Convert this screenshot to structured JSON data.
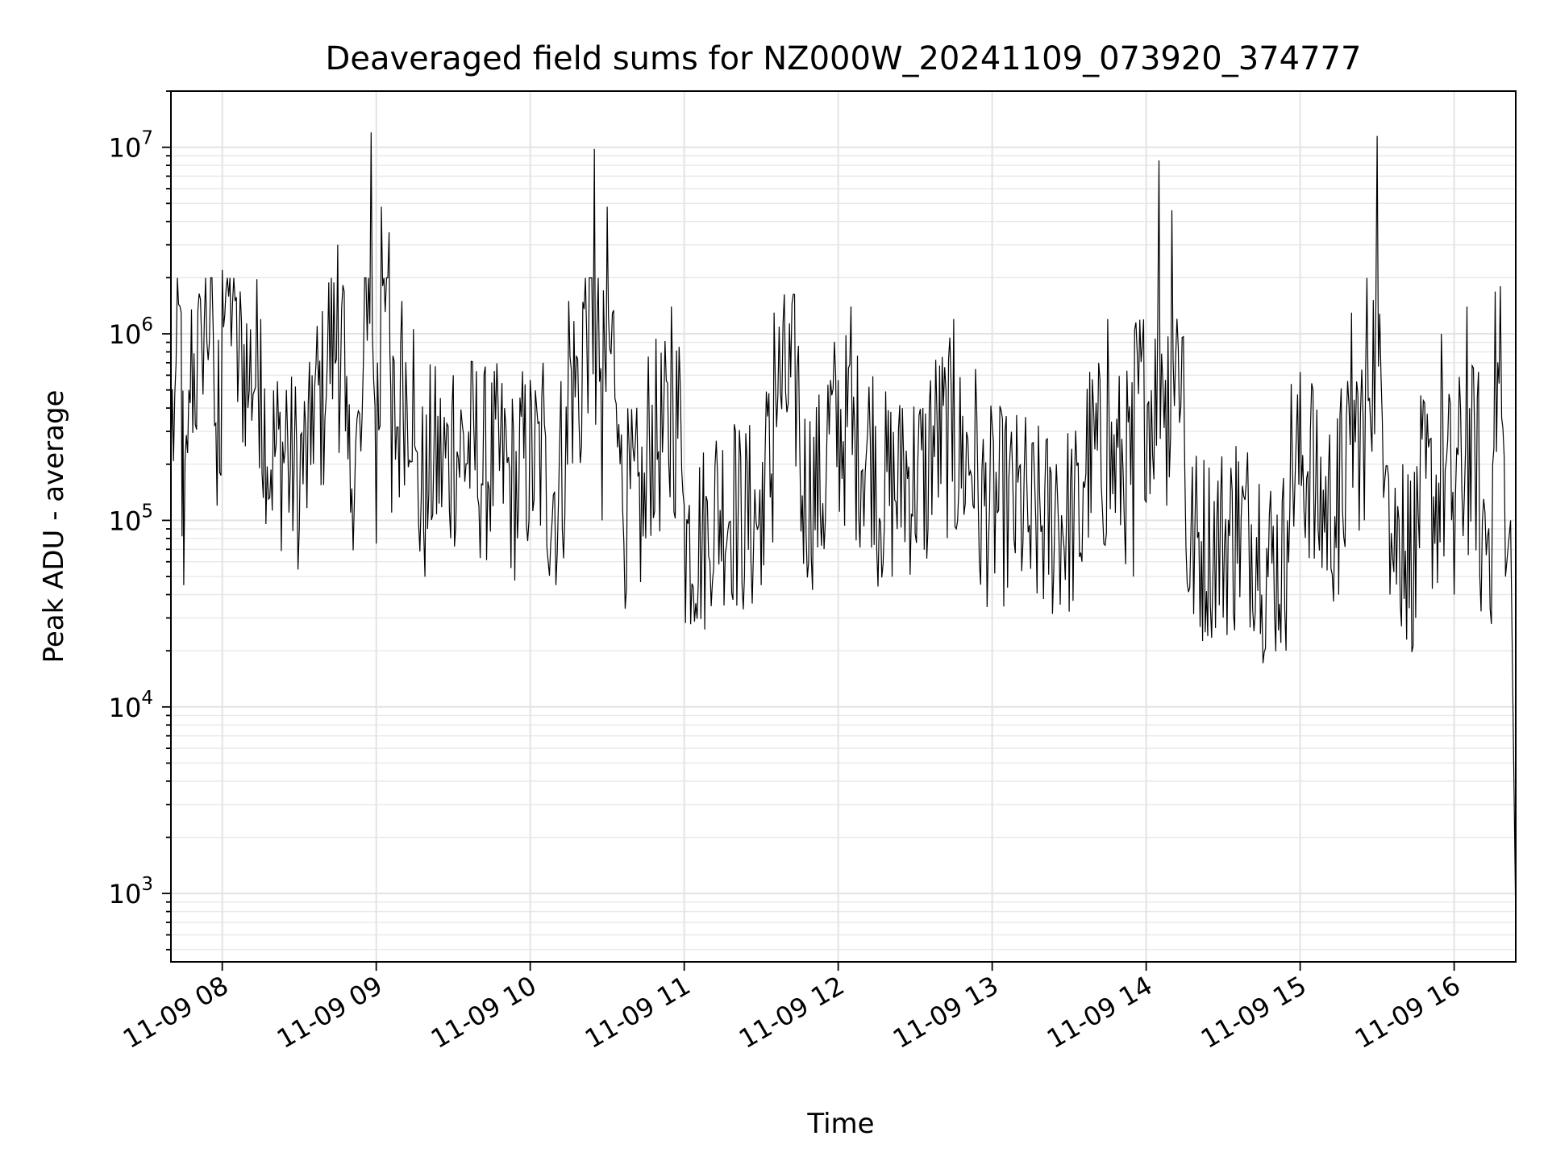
{
  "chart_data": {
    "type": "line",
    "title": "Deaveraged field sums for NZ000W_20241109_073920_374777",
    "xlabel": "Time",
    "ylabel": "Peak ADU - average",
    "yscale": "log",
    "grid": "both (major and minor)",
    "legend": "none",
    "series_color": "#000000",
    "xlim": [
      "2024-11-09T07:40:00",
      "2024-11-09T16:24:00"
    ],
    "ylim": [
      430,
      20000000
    ],
    "x_ticks": [
      {
        "t": "2024-11-09T08:00:00",
        "label": "11-09 08"
      },
      {
        "t": "2024-11-09T09:00:00",
        "label": "11-09 09"
      },
      {
        "t": "2024-11-09T10:00:00",
        "label": "11-09 10"
      },
      {
        "t": "2024-11-09T11:00:00",
        "label": "11-09 11"
      },
      {
        "t": "2024-11-09T12:00:00",
        "label": "11-09 12"
      },
      {
        "t": "2024-11-09T13:00:00",
        "label": "11-09 13"
      },
      {
        "t": "2024-11-09T14:00:00",
        "label": "11-09 14"
      },
      {
        "t": "2024-11-09T15:00:00",
        "label": "11-09 15"
      },
      {
        "t": "2024-11-09T16:00:00",
        "label": "11-09 16"
      }
    ],
    "y_ticks": [
      {
        "value": 1000,
        "base": "10",
        "exp": "3"
      },
      {
        "value": 10000,
        "base": "10",
        "exp": "4"
      },
      {
        "value": 100000,
        "base": "10",
        "exp": "5"
      },
      {
        "value": 1000000,
        "base": "10",
        "exp": "6"
      },
      {
        "value": 10000000,
        "base": "10",
        "exp": "7"
      }
    ],
    "series": [
      {
        "points": [
          [
            "2024-11-09T07:40:00",
            200000
          ],
          [
            "2024-11-09T07:42:00",
            700000
          ],
          [
            "2024-11-09T07:44:00",
            1300000
          ],
          [
            "2024-11-09T07:45:00",
            45000
          ],
          [
            "2024-11-09T07:47:00",
            500000
          ],
          [
            "2024-11-09T07:52:00",
            900000
          ],
          [
            "2024-11-09T07:56:00",
            2000000
          ],
          [
            "2024-11-09T07:58:00",
            120000
          ],
          [
            "2024-11-09T08:00:00",
            2200000
          ],
          [
            "2024-11-09T08:05:00",
            1500000
          ],
          [
            "2024-11-09T08:10:00",
            400000
          ],
          [
            "2024-11-09T08:15:00",
            1200000
          ],
          [
            "2024-11-09T08:18:00",
            130000
          ],
          [
            "2024-11-09T08:25:00",
            500000
          ],
          [
            "2024-11-09T08:30:00",
            90000
          ],
          [
            "2024-11-09T08:35:00",
            600000
          ],
          [
            "2024-11-09T08:40:00",
            350000
          ],
          [
            "2024-11-09T08:45:00",
            3000000
          ],
          [
            "2024-11-09T08:48:00",
            300000
          ],
          [
            "2024-11-09T08:50:00",
            110000
          ],
          [
            "2024-11-09T08:55:00",
            700000
          ],
          [
            "2024-11-09T08:58:00",
            12000000
          ],
          [
            "2024-11-09T09:00:00",
            75000
          ],
          [
            "2024-11-09T09:02:00",
            4800000
          ],
          [
            "2024-11-09T09:05:00",
            3500000
          ],
          [
            "2024-11-09T09:06:00",
            110000
          ],
          [
            "2024-11-09T09:10:00",
            1500000
          ],
          [
            "2024-11-09T09:15:00",
            250000
          ],
          [
            "2024-11-09T09:20:00",
            90000
          ],
          [
            "2024-11-09T09:30:00",
            600000
          ],
          [
            "2024-11-09T09:40:00",
            120000
          ],
          [
            "2024-11-09T09:50:00",
            400000
          ],
          [
            "2024-11-09T09:55:00",
            80000
          ],
          [
            "2024-11-09T10:05:00",
            700000
          ],
          [
            "2024-11-09T10:10:00",
            45000
          ],
          [
            "2024-11-09T10:15:00",
            1500000
          ],
          [
            "2024-11-09T10:20:00",
            250000
          ],
          [
            "2024-11-09T10:25:00",
            9800000
          ],
          [
            "2024-11-09T10:28:00",
            100000
          ],
          [
            "2024-11-09T10:30:00",
            4800000
          ],
          [
            "2024-11-09T10:35:00",
            200000
          ],
          [
            "2024-11-09T10:45:00",
            80000
          ],
          [
            "2024-11-09T10:55:00",
            1400000
          ],
          [
            "2024-11-09T11:00:00",
            120000
          ],
          [
            "2024-11-09T11:10:00",
            60000
          ],
          [
            "2024-11-09T11:20:00",
            300000
          ],
          [
            "2024-11-09T11:30:00",
            45000
          ],
          [
            "2024-11-09T11:35:00",
            1300000
          ],
          [
            "2024-11-09T11:45:00",
            250000
          ],
          [
            "2024-11-09T11:55:00",
            100000
          ],
          [
            "2024-11-09T12:05:00",
            1400000
          ],
          [
            "2024-11-09T12:15:00",
            70000
          ],
          [
            "2024-11-09T12:25:00",
            400000
          ],
          [
            "2024-11-09T12:35:00",
            90000
          ],
          [
            "2024-11-09T12:45:00",
            1200000
          ],
          [
            "2024-11-09T12:55:00",
            60000
          ],
          [
            "2024-11-09T13:05:00",
            300000
          ],
          [
            "2024-11-09T13:15:00",
            55000
          ],
          [
            "2024-11-09T13:25:00",
            200000
          ],
          [
            "2024-11-09T13:35:00",
            60000
          ],
          [
            "2024-11-09T13:45:00",
            1200000
          ],
          [
            "2024-11-09T13:55:00",
            50000
          ],
          [
            "2024-11-09T14:05:00",
            8500000
          ],
          [
            "2024-11-09T14:08:00",
            120000
          ],
          [
            "2024-11-09T14:10:00",
            4600000
          ],
          [
            "2024-11-09T14:15:00",
            200000
          ],
          [
            "2024-11-09T14:25:00",
            35000
          ],
          [
            "2024-11-09T14:35:00",
            250000
          ],
          [
            "2024-11-09T14:45:00",
            40000
          ],
          [
            "2024-11-09T14:55:00",
            100000
          ],
          [
            "2024-11-09T15:05:00",
            500000
          ],
          [
            "2024-11-09T15:15:00",
            40000
          ],
          [
            "2024-11-09T15:20:00",
            1300000
          ],
          [
            "2024-11-09T15:25:00",
            100000
          ],
          [
            "2024-11-09T15:30:00",
            11500000
          ],
          [
            "2024-11-09T15:35:00",
            40000
          ],
          [
            "2024-11-09T15:40:00",
            200000
          ],
          [
            "2024-11-09T15:45:00",
            30000
          ],
          [
            "2024-11-09T15:55:00",
            1000000
          ],
          [
            "2024-11-09T16:00:00",
            40000
          ],
          [
            "2024-11-09T16:05:00",
            1400000
          ],
          [
            "2024-11-09T16:10:00",
            50000
          ],
          [
            "2024-11-09T16:15:00",
            200000
          ],
          [
            "2024-11-09T16:18:00",
            1800000
          ],
          [
            "2024-11-09T16:20:00",
            50000
          ],
          [
            "2024-11-09T16:22:00",
            100000
          ],
          [
            "2024-11-09T16:24:00",
            700
          ]
        ]
      }
    ]
  }
}
